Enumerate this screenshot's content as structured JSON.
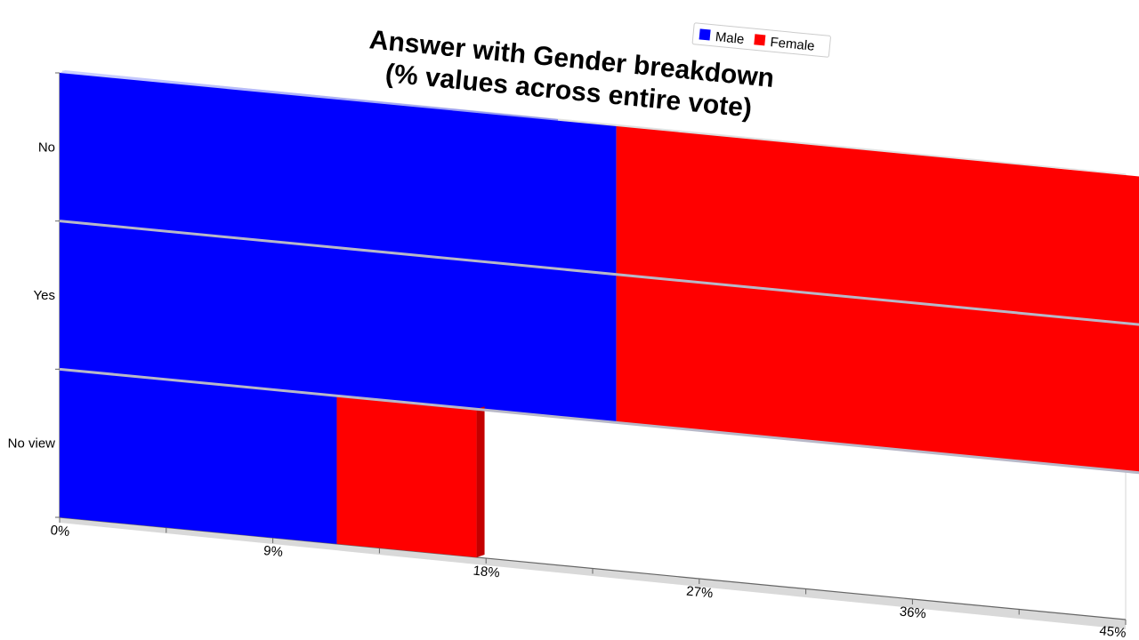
{
  "chart_data": {
    "type": "bar",
    "orientation": "horizontal",
    "stacked": true,
    "style": "3d-perspective",
    "title": [
      "Answer with Gender breakdown",
      "(% values across entire vote)"
    ],
    "categories": [
      "No",
      "Yes",
      "No view"
    ],
    "series": [
      {
        "name": "Male",
        "color": "#0000ff",
        "values": [
          23.5,
          23.5,
          11.7
        ]
      },
      {
        "name": "Female",
        "color": "#ff0000",
        "values": [
          23.5,
          23.5,
          5.9
        ]
      }
    ],
    "xlim": [
      0,
      45
    ],
    "x_ticks": [
      "0%",
      "9%",
      "18%",
      "27%",
      "36%",
      "45%"
    ],
    "x_tick_values": [
      0,
      9,
      18,
      27,
      36,
      45
    ],
    "legend": {
      "placement": "top-right"
    },
    "grid": false
  }
}
